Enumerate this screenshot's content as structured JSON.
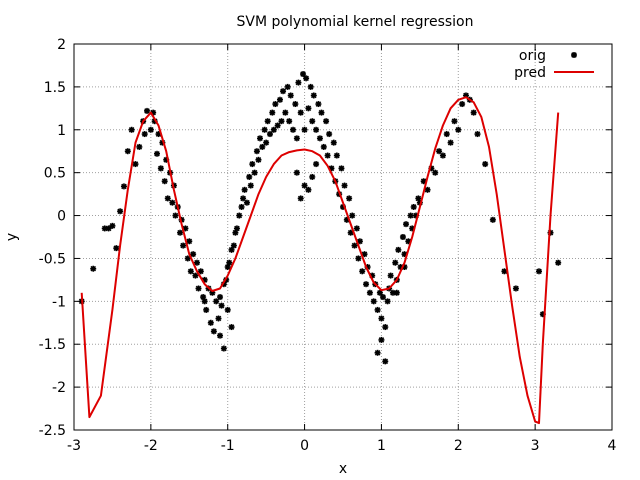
{
  "chart_data": {
    "type": "scatter",
    "title": "SVM polynomial kernel regression",
    "xlabel": "x",
    "ylabel": "y",
    "xlim": [
      -3,
      4
    ],
    "ylim": [
      -2.5,
      2
    ],
    "xticks": [
      "-3",
      "-2",
      "-1",
      "0",
      "1",
      "2",
      "3",
      "4"
    ],
    "yticks": [
      "2",
      "1.5",
      "1",
      "0.5",
      "0",
      "-0.5",
      "-1",
      "-1.5",
      "-2",
      "-2.5"
    ],
    "grid": true,
    "legend_position": "top-right",
    "colors": {
      "orig": "#000000",
      "pred": "#dd0000"
    },
    "series": [
      {
        "name": "orig",
        "kind": "scatter",
        "x": [
          -2.9,
          -2.75,
          -2.6,
          -2.55,
          -2.5,
          -2.45,
          -2.4,
          -2.35,
          -2.3,
          -2.25,
          -2.2,
          -2.15,
          -2.1,
          -2.08,
          -2.05,
          -2.0,
          -1.97,
          -1.95,
          -1.92,
          -1.9,
          -1.87,
          -1.85,
          -1.82,
          -1.8,
          -1.78,
          -1.75,
          -1.72,
          -1.7,
          -1.68,
          -1.65,
          -1.62,
          -1.6,
          -1.58,
          -1.55,
          -1.52,
          -1.5,
          -1.48,
          -1.45,
          -1.42,
          -1.4,
          -1.38,
          -1.35,
          -1.32,
          -1.3,
          -1.28,
          -1.25,
          -1.22,
          -1.2,
          -1.18,
          -1.15,
          -1.12,
          -1.1,
          -1.08,
          -1.05,
          -1.02,
          -1.0,
          -0.98,
          -0.95,
          -0.92,
          -0.9,
          -0.88,
          -0.85,
          -0.82,
          -0.8,
          -0.78,
          -0.75,
          -0.72,
          -0.7,
          -0.68,
          -0.65,
          -0.62,
          -0.6,
          -0.58,
          -0.55,
          -0.52,
          -0.5,
          -0.48,
          -0.45,
          -0.42,
          -0.4,
          -0.38,
          -0.35,
          -0.32,
          -0.3,
          -0.28,
          -0.25,
          -0.22,
          -0.2,
          -0.18,
          -0.15,
          -0.12,
          -0.1,
          -0.08,
          -0.05,
          -0.02,
          0.0,
          0.02,
          0.05,
          0.08,
          0.1,
          0.12,
          0.15,
          0.18,
          0.2,
          0.22,
          0.25,
          0.28,
          0.3,
          0.32,
          0.35,
          0.38,
          0.4,
          0.42,
          0.45,
          0.48,
          0.5,
          0.52,
          0.55,
          0.58,
          0.6,
          0.62,
          0.65,
          0.68,
          0.7,
          0.72,
          0.75,
          0.78,
          0.8,
          0.82,
          0.85,
          0.88,
          0.9,
          0.92,
          0.95,
          0.98,
          1.0,
          1.02,
          1.05,
          1.08,
          1.1,
          1.12,
          1.15,
          1.18,
          1.2,
          1.22,
          1.25,
          1.28,
          1.3,
          1.32,
          1.35,
          1.38,
          1.4,
          1.42,
          1.45,
          1.48,
          1.5,
          1.55,
          1.6,
          1.65,
          1.7,
          1.75,
          1.8,
          1.85,
          1.9,
          1.95,
          2.0,
          2.05,
          2.1,
          2.15,
          2.2,
          2.25,
          2.35,
          2.45,
          2.6,
          2.75,
          3.05,
          3.1,
          3.2,
          3.3,
          -1.1,
          -1.05,
          -0.95,
          0.95,
          1.0,
          1.05,
          -0.1,
          0.0,
          0.1,
          -0.05,
          0.05,
          0.15,
          -1.3,
          -1.0,
          1.2,
          1.3
        ],
        "y": [
          -1.0,
          -0.62,
          -0.15,
          -0.15,
          -0.12,
          -0.38,
          0.05,
          0.34,
          0.75,
          1.0,
          0.6,
          0.8,
          1.1,
          0.95,
          1.22,
          1.0,
          1.2,
          1.1,
          0.72,
          0.95,
          0.55,
          0.85,
          0.4,
          0.65,
          0.2,
          0.5,
          0.15,
          0.35,
          0.0,
          0.1,
          -0.2,
          -0.05,
          -0.35,
          -0.15,
          -0.5,
          -0.3,
          -0.65,
          -0.45,
          -0.7,
          -0.55,
          -0.85,
          -0.65,
          -0.95,
          -0.75,
          -1.1,
          -0.85,
          -1.25,
          -0.9,
          -1.35,
          -1.0,
          -1.2,
          -0.95,
          -1.05,
          -0.8,
          -0.75,
          -0.6,
          -0.55,
          -0.4,
          -0.35,
          -0.2,
          -0.15,
          0.0,
          0.1,
          0.2,
          0.3,
          0.15,
          0.45,
          0.35,
          0.6,
          0.5,
          0.75,
          0.65,
          0.9,
          0.8,
          1.0,
          0.85,
          1.1,
          0.95,
          1.2,
          1.0,
          1.3,
          1.05,
          1.35,
          1.1,
          1.45,
          1.2,
          1.5,
          1.1,
          1.4,
          1.0,
          1.3,
          0.9,
          1.55,
          1.2,
          1.65,
          1.0,
          1.6,
          1.25,
          1.5,
          1.1,
          1.4,
          1.0,
          1.3,
          0.9,
          1.2,
          0.8,
          1.1,
          0.7,
          0.95,
          0.55,
          0.85,
          0.4,
          0.7,
          0.25,
          0.55,
          0.1,
          0.35,
          -0.05,
          0.2,
          -0.2,
          0.0,
          -0.35,
          -0.15,
          -0.5,
          -0.3,
          -0.65,
          -0.45,
          -0.8,
          -0.6,
          -0.9,
          -0.7,
          -1.0,
          -0.8,
          -1.1,
          -0.9,
          -1.2,
          -0.95,
          -1.3,
          -1.0,
          -0.85,
          -0.7,
          -0.9,
          -0.55,
          -0.75,
          -0.4,
          -0.6,
          -0.25,
          -0.45,
          -0.1,
          -0.3,
          0.0,
          -0.15,
          0.1,
          0.0,
          0.2,
          0.15,
          0.4,
          0.3,
          0.55,
          0.5,
          0.75,
          0.7,
          0.95,
          0.85,
          1.1,
          1.0,
          1.3,
          1.4,
          1.35,
          1.2,
          0.95,
          0.6,
          -0.05,
          -0.65,
          -0.85,
          -0.65,
          -1.15,
          -0.2,
          -0.55,
          -1.4,
          -1.55,
          -1.3,
          -1.6,
          -1.45,
          -1.7,
          0.5,
          0.35,
          0.45,
          0.2,
          0.3,
          0.6,
          -1.0,
          -1.1,
          -0.9,
          -0.6
        ]
      },
      {
        "name": "pred",
        "kind": "line",
        "x": [
          -2.9,
          -2.8,
          -2.65,
          -2.5,
          -2.4,
          -2.3,
          -2.2,
          -2.1,
          -2.0,
          -1.9,
          -1.8,
          -1.7,
          -1.6,
          -1.5,
          -1.4,
          -1.3,
          -1.2,
          -1.1,
          -1.0,
          -0.9,
          -0.8,
          -0.7,
          -0.6,
          -0.5,
          -0.4,
          -0.3,
          -0.2,
          -0.1,
          0.0,
          0.1,
          0.2,
          0.3,
          0.4,
          0.5,
          0.6,
          0.7,
          0.8,
          0.9,
          1.0,
          1.1,
          1.2,
          1.3,
          1.4,
          1.5,
          1.6,
          1.7,
          1.8,
          1.9,
          2.0,
          2.1,
          2.2,
          2.3,
          2.4,
          2.5,
          2.6,
          2.7,
          2.8,
          2.9,
          3.0,
          3.05,
          3.1,
          3.2,
          3.3
        ],
        "y": [
          -0.9,
          -2.35,
          -2.1,
          -1.1,
          -0.35,
          0.3,
          0.85,
          1.1,
          1.2,
          1.05,
          0.75,
          0.3,
          -0.1,
          -0.45,
          -0.65,
          -0.8,
          -0.88,
          -0.85,
          -0.7,
          -0.5,
          -0.25,
          0.0,
          0.25,
          0.45,
          0.6,
          0.7,
          0.74,
          0.76,
          0.77,
          0.75,
          0.7,
          0.58,
          0.4,
          0.15,
          -0.1,
          -0.35,
          -0.6,
          -0.78,
          -0.87,
          -0.85,
          -0.75,
          -0.55,
          -0.25,
          0.1,
          0.45,
          0.78,
          1.05,
          1.25,
          1.35,
          1.38,
          1.32,
          1.15,
          0.8,
          0.25,
          -0.4,
          -1.05,
          -1.65,
          -2.1,
          -2.4,
          -2.42,
          -1.5,
          0.0,
          1.2
        ]
      }
    ]
  }
}
